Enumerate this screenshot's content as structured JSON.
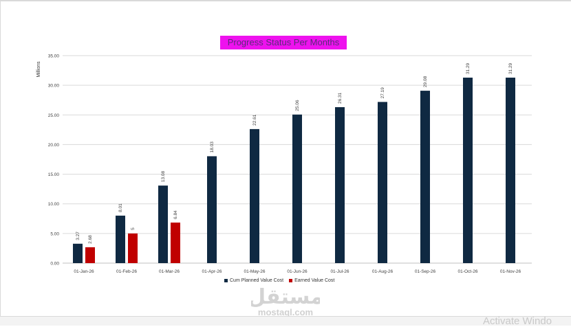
{
  "chart_data": {
    "type": "bar",
    "title": "Progress Status Per Months",
    "ylabel": "Millions",
    "ylim": [
      0,
      35
    ],
    "yticks": [
      "0.00",
      "5.00",
      "10.00",
      "15.00",
      "20.00",
      "25.00",
      "30.00",
      "35.00"
    ],
    "categories": [
      "01-Jan-26",
      "01-Feb-26",
      "01-Mar-26",
      "01-Apr-26",
      "01-May-26",
      "01-Jun-26",
      "01-Jul-26",
      "01-Aug-26",
      "01-Sep-26",
      "01-Oct-26",
      "01-Nov-26"
    ],
    "series": [
      {
        "name": "Cum Planned Value Cost",
        "color": "#0f2942",
        "values": [
          3.27,
          8.01,
          13.08,
          18.03,
          22.61,
          25.06,
          26.31,
          27.19,
          29.08,
          31.29,
          31.29
        ],
        "labels": [
          "3.27",
          "8.01",
          "13.08",
          "18.03",
          "22.61",
          "25.06",
          "26.31",
          "27.19",
          "29.08",
          "31.29",
          "31.29"
        ]
      },
      {
        "name": "Earned Value Cost",
        "color": "#c00000",
        "values": [
          2.68,
          5,
          6.84,
          null,
          null,
          null,
          null,
          null,
          null,
          null,
          null
        ],
        "labels": [
          "2.68",
          "5",
          "6.84",
          "",
          "",
          "",
          "",
          "",
          "",
          "",
          ""
        ]
      }
    ],
    "grid": true,
    "legend_position": "bottom"
  },
  "watermark": {
    "logo": "مستقل",
    "site": "mostaql.com"
  },
  "overlay": {
    "activate_text": "Activate Windo"
  }
}
